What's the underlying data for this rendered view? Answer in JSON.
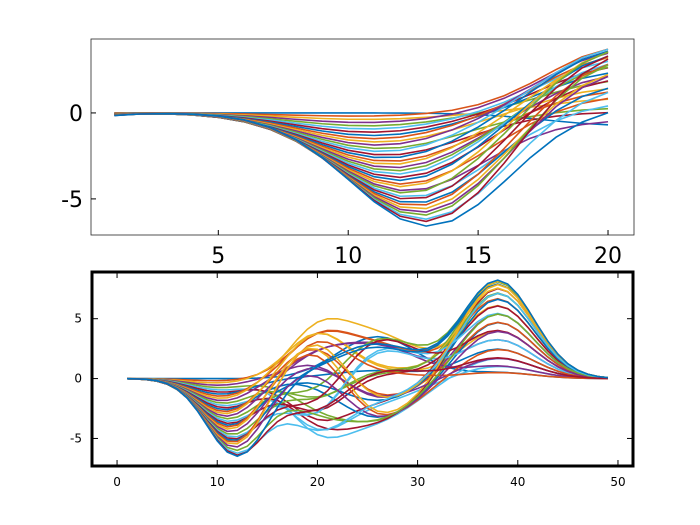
{
  "chart_data": [
    {
      "type": "line",
      "x_range": [
        1,
        20
      ],
      "xlim": [
        0.1,
        21
      ],
      "ylim": [
        -7.1,
        4.3
      ],
      "xticks": [
        5,
        10,
        15,
        20
      ],
      "xtick_labels": [
        "5",
        "10",
        "15",
        "20"
      ],
      "yticks": [
        0,
        -5
      ],
      "ytick_labels": [
        "0",
        "-5"
      ],
      "curve_count": 36,
      "series_family": {
        "description_values": "36 curves x=1..20; dip centers ~11-13 with depths from 0 to -6.6, rising to ends between -0.7 and 3.8 at x=20",
        "min_at_x12": -6.6,
        "max_at_x20": 3.8
      },
      "grid": false,
      "legend": "none"
    },
    {
      "type": "line",
      "x_range": [
        1,
        49
      ],
      "xlim": [
        -2.5,
        51.5
      ],
      "ylim": [
        -7.3,
        8.9
      ],
      "xticks": [
        0,
        10,
        20,
        30,
        40,
        50
      ],
      "xtick_labels": [
        "0",
        "10",
        "20",
        "30",
        "40",
        "50"
      ],
      "yticks": [
        5,
        0,
        -5
      ],
      "ytick_labels": [
        "5",
        "0",
        "-5"
      ],
      "curve_count": 36,
      "series_family": {
        "description_values": "36 curves x=1..49; trough ~-6.5 at x=12, peaks ~3.7 near x=20, ~3.5 near x=25, ~8.2 near x=38, returning to ~0 at x=49",
        "min_at_x12": -6.5,
        "max_at_x38": 8.2
      },
      "grid": false,
      "legend": "none"
    }
  ],
  "colors": [
    "#0072BD",
    "#D95319",
    "#EDB120",
    "#7E2F8E",
    "#77AC30",
    "#4DBEEE",
    "#A2142F"
  ]
}
